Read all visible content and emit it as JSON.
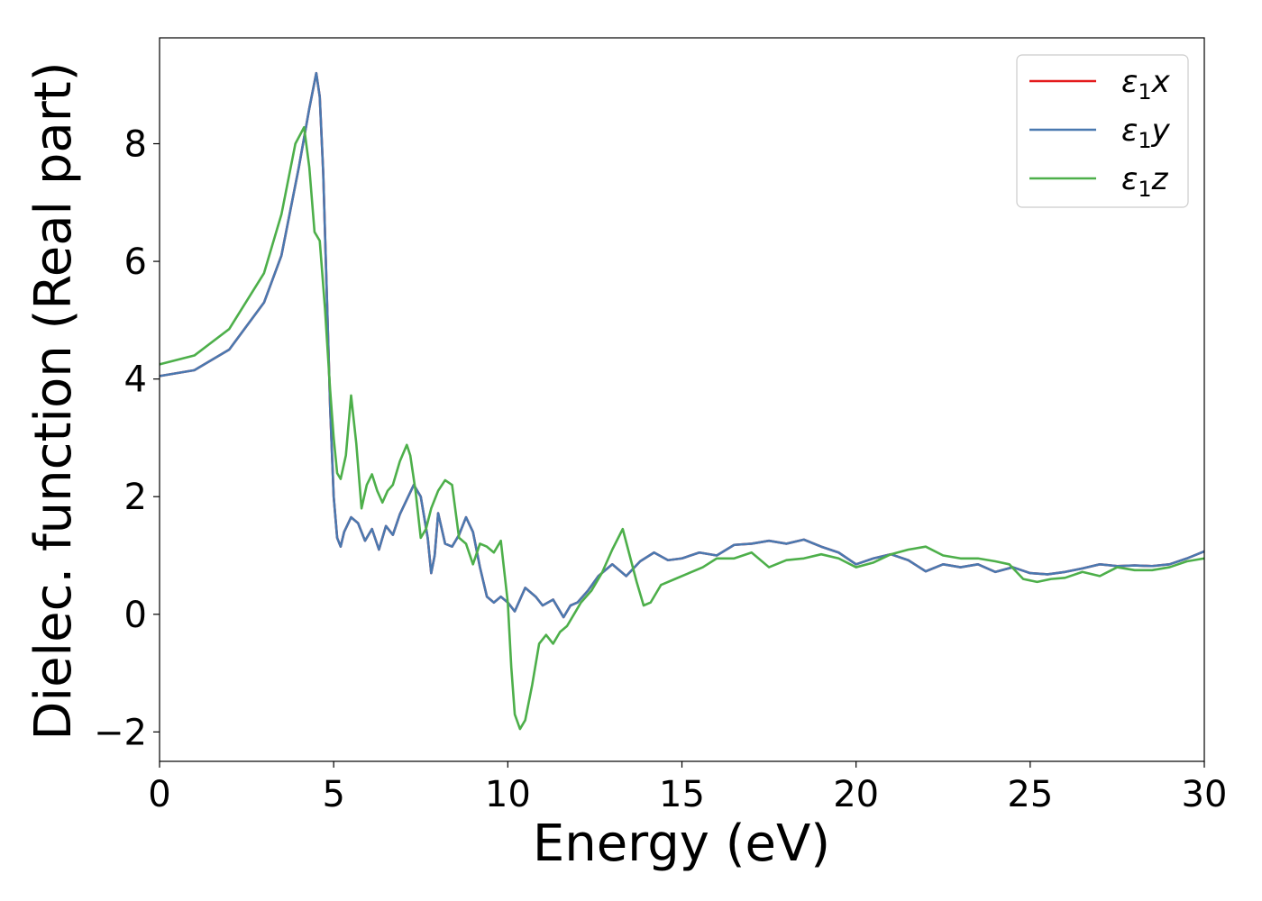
{
  "chart_data": {
    "type": "line",
    "xlabel": "Energy (eV)",
    "ylabel": "Dielec. function (Real part)",
    "xlim": [
      0,
      30
    ],
    "ylim": [
      -2.5,
      9.8
    ],
    "xticks": [
      0,
      5,
      10,
      15,
      20,
      25,
      30
    ],
    "yticks": [
      -2,
      0,
      2,
      4,
      6,
      8
    ],
    "grid": false,
    "legend_position": "top-right",
    "series": [
      {
        "name": "ε₁x",
        "legend_base": "ε",
        "legend_sub": "1",
        "legend_var": "x",
        "color": "#e41a1c",
        "x": [
          0,
          1,
          2,
          3,
          3.5,
          4,
          4.3,
          4.5,
          4.6,
          4.7,
          4.8,
          4.9,
          5.0,
          5.1,
          5.2,
          5.3,
          5.5,
          5.7,
          5.9,
          6.1,
          6.3,
          6.5,
          6.7,
          6.9,
          7.1,
          7.3,
          7.5,
          7.7,
          7.8,
          7.9,
          8.0,
          8.2,
          8.4,
          8.6,
          8.8,
          9.0,
          9.2,
          9.4,
          9.6,
          9.8,
          10.0,
          10.2,
          10.5,
          10.8,
          11.0,
          11.3,
          11.6,
          11.8,
          12.0,
          12.3,
          12.6,
          13.0,
          13.4,
          13.8,
          14.2,
          14.6,
          15.0,
          15.5,
          16.0,
          16.5,
          17.0,
          17.5,
          18.0,
          18.5,
          19.0,
          19.5,
          20.0,
          20.5,
          21.0,
          21.5,
          22.0,
          22.5,
          23.0,
          23.5,
          24.0,
          24.5,
          25.0,
          25.5,
          26.0,
          26.5,
          27.0,
          27.5,
          28.0,
          28.5,
          29.0,
          29.5,
          30.0
        ],
        "y": [
          4.05,
          4.15,
          4.5,
          5.3,
          6.1,
          7.6,
          8.6,
          9.2,
          8.8,
          7.5,
          5.5,
          3.5,
          2.0,
          1.3,
          1.15,
          1.4,
          1.65,
          1.55,
          1.25,
          1.45,
          1.1,
          1.5,
          1.35,
          1.7,
          1.95,
          2.2,
          2.0,
          1.3,
          0.7,
          1.0,
          1.72,
          1.2,
          1.15,
          1.35,
          1.65,
          1.4,
          0.8,
          0.3,
          0.2,
          0.3,
          0.2,
          0.05,
          0.45,
          0.3,
          0.15,
          0.25,
          -0.05,
          0.15,
          0.2,
          0.4,
          0.65,
          0.85,
          0.65,
          0.9,
          1.05,
          0.92,
          0.95,
          1.05,
          1.0,
          1.18,
          1.2,
          1.25,
          1.2,
          1.27,
          1.15,
          1.05,
          0.85,
          0.95,
          1.02,
          0.92,
          0.73,
          0.85,
          0.8,
          0.85,
          0.72,
          0.8,
          0.7,
          0.68,
          0.72,
          0.78,
          0.85,
          0.82,
          0.83,
          0.82,
          0.85,
          0.95,
          1.07
        ]
      },
      {
        "name": "ε₁y",
        "legend_base": "ε",
        "legend_sub": "1",
        "legend_var": "y",
        "color": "#4a79b0",
        "x": [
          0,
          1,
          2,
          3,
          3.5,
          4,
          4.3,
          4.5,
          4.6,
          4.7,
          4.8,
          4.9,
          5.0,
          5.1,
          5.2,
          5.3,
          5.5,
          5.7,
          5.9,
          6.1,
          6.3,
          6.5,
          6.7,
          6.9,
          7.1,
          7.3,
          7.5,
          7.7,
          7.8,
          7.9,
          8.0,
          8.2,
          8.4,
          8.6,
          8.8,
          9.0,
          9.2,
          9.4,
          9.6,
          9.8,
          10.0,
          10.2,
          10.5,
          10.8,
          11.0,
          11.3,
          11.6,
          11.8,
          12.0,
          12.3,
          12.6,
          13.0,
          13.4,
          13.8,
          14.2,
          14.6,
          15.0,
          15.5,
          16.0,
          16.5,
          17.0,
          17.5,
          18.0,
          18.5,
          19.0,
          19.5,
          20.0,
          20.5,
          21.0,
          21.5,
          22.0,
          22.5,
          23.0,
          23.5,
          24.0,
          24.5,
          25.0,
          25.5,
          26.0,
          26.5,
          27.0,
          27.5,
          28.0,
          28.5,
          29.0,
          29.5,
          30.0
        ],
        "y": [
          4.05,
          4.15,
          4.5,
          5.3,
          6.1,
          7.6,
          8.6,
          9.2,
          8.8,
          7.5,
          5.5,
          3.5,
          2.0,
          1.3,
          1.15,
          1.4,
          1.65,
          1.55,
          1.25,
          1.45,
          1.1,
          1.5,
          1.35,
          1.7,
          1.95,
          2.2,
          2.0,
          1.3,
          0.7,
          1.0,
          1.72,
          1.2,
          1.15,
          1.35,
          1.65,
          1.4,
          0.8,
          0.3,
          0.2,
          0.3,
          0.2,
          0.05,
          0.45,
          0.3,
          0.15,
          0.25,
          -0.05,
          0.15,
          0.2,
          0.4,
          0.65,
          0.85,
          0.65,
          0.9,
          1.05,
          0.92,
          0.95,
          1.05,
          1.0,
          1.18,
          1.2,
          1.25,
          1.2,
          1.27,
          1.15,
          1.05,
          0.85,
          0.95,
          1.02,
          0.92,
          0.73,
          0.85,
          0.8,
          0.85,
          0.72,
          0.8,
          0.7,
          0.68,
          0.72,
          0.78,
          0.85,
          0.82,
          0.83,
          0.82,
          0.85,
          0.95,
          1.07
        ]
      },
      {
        "name": "ε₁z",
        "legend_base": "ε",
        "legend_sub": "1",
        "legend_var": "z",
        "color": "#4daf4a",
        "x": [
          0,
          1,
          2,
          3,
          3.5,
          3.9,
          4.15,
          4.3,
          4.45,
          4.6,
          4.75,
          4.9,
          5.0,
          5.1,
          5.2,
          5.35,
          5.5,
          5.65,
          5.8,
          5.95,
          6.1,
          6.25,
          6.4,
          6.55,
          6.7,
          6.9,
          7.1,
          7.2,
          7.35,
          7.5,
          7.65,
          7.8,
          8.0,
          8.2,
          8.4,
          8.6,
          8.8,
          9.0,
          9.2,
          9.4,
          9.6,
          9.8,
          10.0,
          10.1,
          10.2,
          10.35,
          10.5,
          10.7,
          10.9,
          11.1,
          11.3,
          11.5,
          11.7,
          11.9,
          12.1,
          12.4,
          12.7,
          13.0,
          13.3,
          13.5,
          13.7,
          13.9,
          14.1,
          14.4,
          14.8,
          15.2,
          15.6,
          16.0,
          16.5,
          17.0,
          17.5,
          18.0,
          18.5,
          19.0,
          19.5,
          20.0,
          20.5,
          21.0,
          21.5,
          22.0,
          22.5,
          23.0,
          23.5,
          24.0,
          24.4,
          24.8,
          25.2,
          25.6,
          26.0,
          26.5,
          27.0,
          27.5,
          28.0,
          28.5,
          29.0,
          29.5,
          30.0
        ],
        "y": [
          4.25,
          4.4,
          4.85,
          5.8,
          6.8,
          8.0,
          8.28,
          7.6,
          6.5,
          6.35,
          5.2,
          3.8,
          3.0,
          2.4,
          2.3,
          2.7,
          3.72,
          2.9,
          1.8,
          2.2,
          2.38,
          2.1,
          1.9,
          2.1,
          2.2,
          2.6,
          2.88,
          2.7,
          2.1,
          1.3,
          1.45,
          1.8,
          2.1,
          2.28,
          2.2,
          1.3,
          1.2,
          0.85,
          1.2,
          1.15,
          1.05,
          1.25,
          0.2,
          -0.9,
          -1.7,
          -1.95,
          -1.8,
          -1.2,
          -0.5,
          -0.35,
          -0.5,
          -0.3,
          -0.2,
          0.0,
          0.2,
          0.4,
          0.7,
          1.1,
          1.45,
          1.0,
          0.55,
          0.15,
          0.2,
          0.5,
          0.6,
          0.7,
          0.8,
          0.95,
          0.95,
          1.05,
          0.8,
          0.92,
          0.95,
          1.02,
          0.95,
          0.8,
          0.88,
          1.02,
          1.1,
          1.15,
          1.0,
          0.95,
          0.95,
          0.9,
          0.85,
          0.6,
          0.55,
          0.6,
          0.62,
          0.72,
          0.65,
          0.8,
          0.75,
          0.75,
          0.8,
          0.9,
          0.95
        ]
      }
    ]
  }
}
